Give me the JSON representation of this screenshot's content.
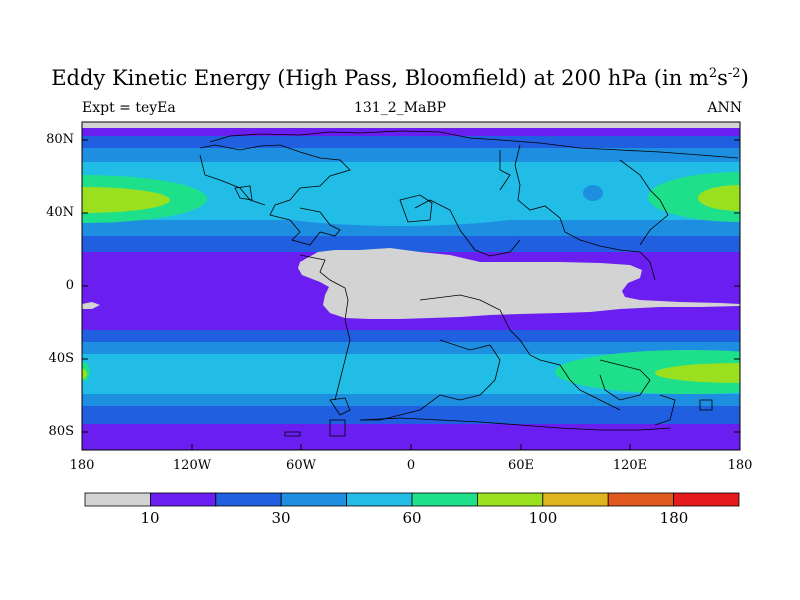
{
  "title": {
    "prefix": "Eddy Kinetic Energy (High Pass, Bloomfield) at 200 hPa (in m",
    "sup1": "2",
    "mid": "s",
    "sup2": "-2",
    "suffix": ")"
  },
  "left_label": "Expt = teyEa",
  "center_label": "131_2_MaBP",
  "right_label": "ANN",
  "y_ticks": [
    "80N",
    "40N",
    "0",
    "40S",
    "80S"
  ],
  "x_ticks": [
    "180",
    "120W",
    "60W",
    "0",
    "60E",
    "120E",
    "180"
  ],
  "colorbar": {
    "colors": [
      "#d3d3d3",
      "#6a1ff0",
      "#1f5fe0",
      "#1e8fe0",
      "#22bde6",
      "#1fe08a",
      "#9be01e",
      "#e0b41e",
      "#e05a1e",
      "#e51b1b"
    ],
    "labels": [
      {
        "text": "10",
        "after_index": 1
      },
      {
        "text": "30",
        "after_index": 3
      },
      {
        "text": "60",
        "after_index": 5
      },
      {
        "text": "100",
        "after_index": 7
      },
      {
        "text": "180",
        "after_index": 9
      }
    ]
  },
  "colors": {
    "land_gray": "#d3d3d3",
    "purple": "#6a1ff0",
    "blue": "#1f5fe0",
    "mid_blue": "#1e8fe0",
    "cyan": "#22bde6",
    "green": "#1fe08a",
    "yellow_green": "#9be01e"
  }
}
